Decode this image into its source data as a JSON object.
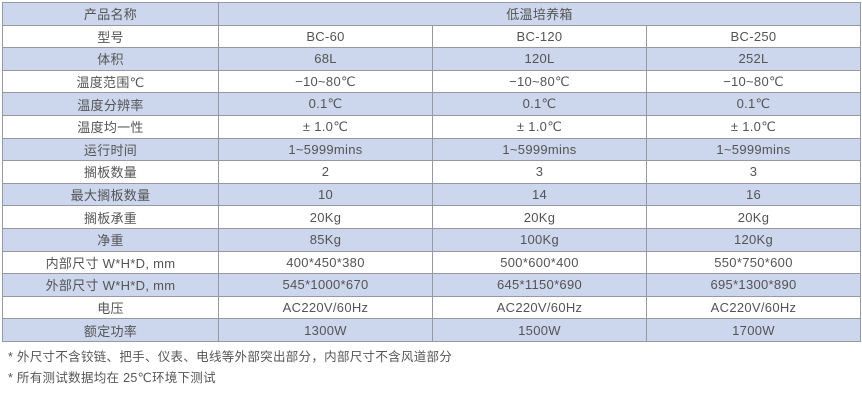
{
  "table": {
    "header": {
      "label": "产品名称",
      "value": "低温培养箱"
    },
    "rows": [
      {
        "label": "型号",
        "values": [
          "BC-60",
          "BC-120",
          "BC-250"
        ]
      },
      {
        "label": "体积",
        "values": [
          "68L",
          "120L",
          "252L"
        ]
      },
      {
        "label": "温度范围℃",
        "values": [
          "−10~80℃",
          "−10~80℃",
          "−10~80℃"
        ]
      },
      {
        "label": "温度分辨率",
        "values": [
          "0.1℃",
          "0.1℃",
          "0.1℃"
        ]
      },
      {
        "label": "温度均一性",
        "values": [
          "± 1.0℃",
          "± 1.0℃",
          "± 1.0℃"
        ]
      },
      {
        "label": "运行时间",
        "values": [
          "1~5999mins",
          "1~5999mins",
          "1~5999mins"
        ]
      },
      {
        "label": "搁板数量",
        "values": [
          "2",
          "3",
          "3"
        ]
      },
      {
        "label": "最大搁板数量",
        "values": [
          "10",
          "14",
          "16"
        ]
      },
      {
        "label": "搁板承重",
        "values": [
          "20Kg",
          "20Kg",
          "20Kg"
        ]
      },
      {
        "label": "净重",
        "values": [
          "85Kg",
          "100Kg",
          "120Kg"
        ]
      },
      {
        "label": "内部尺寸 W*H*D, mm",
        "values": [
          "400*450*380",
          "500*600*400",
          "550*750*600"
        ]
      },
      {
        "label": "外部尺寸 W*H*D, mm",
        "values": [
          "545*1000*670",
          "645*1150*690",
          "695*1300*890"
        ]
      },
      {
        "label": "电压",
        "values": [
          "AC220V/60Hz",
          "AC220V/60Hz",
          "AC220V/60Hz"
        ]
      },
      {
        "label": "额定功率",
        "values": [
          "1300W",
          "1500W",
          "1700W"
        ]
      }
    ]
  },
  "notes": [
    "* 外尺寸不含铰链、把手、仪表、电线等外部突出部分，内部尺寸不含风道部分",
    "* 所有测试数据均在 25℃环境下测试"
  ],
  "colors": {
    "row_blue": "#ccd6ec",
    "border": "#96999f",
    "text": "#545454"
  }
}
